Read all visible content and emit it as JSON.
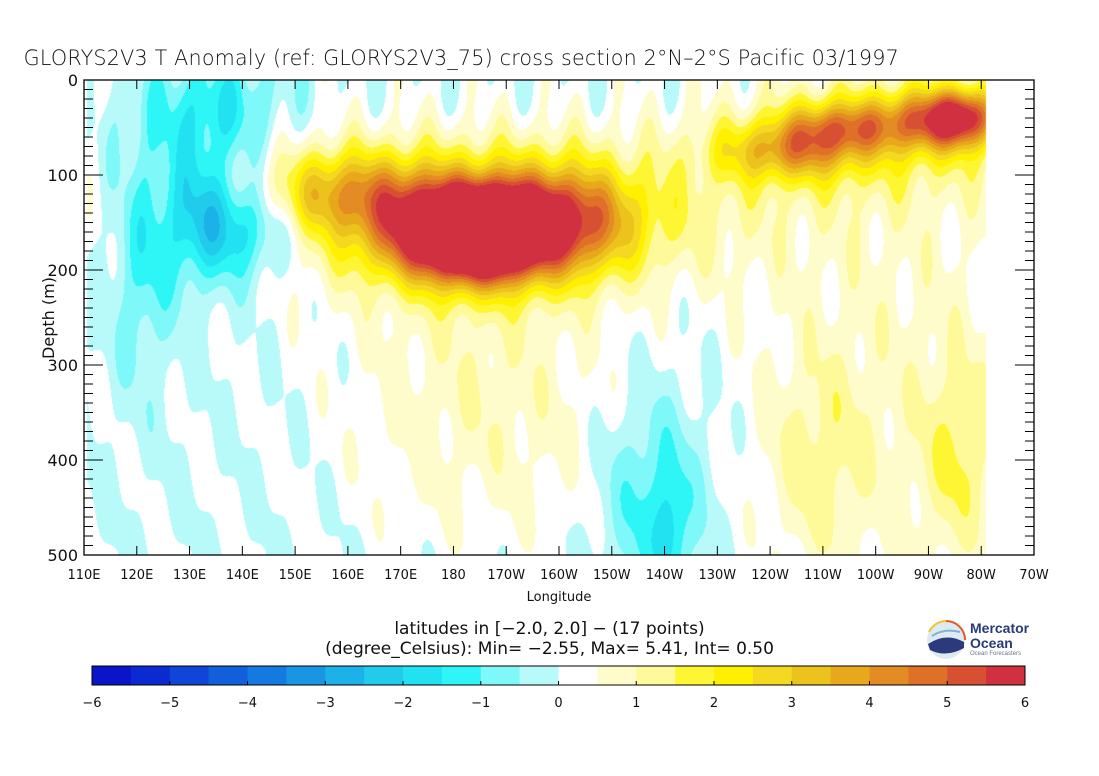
{
  "chart_data": {
    "type": "heatmap",
    "subtype": "filled-contour cross section",
    "title": "GLORYS2V3 T Anomaly (ref: GLORYS2V3_75) cross section 2°N–2°S Pacific 03/1997",
    "xlabel": "Longitude",
    "ylabel": "Depth (m)",
    "x_range_deg_east": [
      110,
      290
    ],
    "y_range_m": [
      0,
      500
    ],
    "y_inverted": true,
    "x_ticks": [
      {
        "value": 110,
        "label": "110E"
      },
      {
        "value": 120,
        "label": "120E"
      },
      {
        "value": 130,
        "label": "130E"
      },
      {
        "value": 140,
        "label": "140E"
      },
      {
        "value": 150,
        "label": "150E"
      },
      {
        "value": 160,
        "label": "160E"
      },
      {
        "value": 170,
        "label": "170E"
      },
      {
        "value": 180,
        "label": "180"
      },
      {
        "value": 190,
        "label": "170W"
      },
      {
        "value": 200,
        "label": "160W"
      },
      {
        "value": 210,
        "label": "150W"
      },
      {
        "value": 220,
        "label": "140W"
      },
      {
        "value": 230,
        "label": "130W"
      },
      {
        "value": 240,
        "label": "120W"
      },
      {
        "value": 250,
        "label": "110W"
      },
      {
        "value": 260,
        "label": "100W"
      },
      {
        "value": 270,
        "label": "90W"
      },
      {
        "value": 280,
        "label": "80W"
      },
      {
        "value": 290,
        "label": "70W"
      }
    ],
    "y_ticks": [
      {
        "value": 0,
        "label": "0"
      },
      {
        "value": 100,
        "label": "100"
      },
      {
        "value": 200,
        "label": "200"
      },
      {
        "value": 300,
        "label": "300"
      },
      {
        "value": 400,
        "label": "400"
      },
      {
        "value": 500,
        "label": "500"
      }
    ],
    "y_minor_tick_step": 10,
    "land_mask_east_of_deg": 281,
    "features": [
      {
        "name": "warm core west",
        "lon": 179,
        "depth": 162,
        "amp": 5.4,
        "slon": 9,
        "sdep": 34
      },
      {
        "name": "warm core central",
        "lon": 187,
        "depth": 162,
        "amp": 5.2,
        "slon": 7,
        "sdep": 32
      },
      {
        "name": "warm lobe",
        "lon": 200,
        "depth": 150,
        "amp": 4.0,
        "slon": 9,
        "sdep": 38
      },
      {
        "name": "thermocline ridge",
        "lon": 185,
        "depth": 140,
        "amp": 2.4,
        "slon": 32,
        "sdep": 55
      },
      {
        "name": "western warm",
        "lon": 160,
        "depth": 118,
        "amp": 2.4,
        "slon": 12,
        "sdep": 30
      },
      {
        "name": "east shallow 1",
        "lon": 243,
        "depth": 75,
        "amp": 2.6,
        "slon": 9,
        "sdep": 22
      },
      {
        "name": "east shallow 2",
        "lon": 253,
        "depth": 50,
        "amp": 2.8,
        "slon": 7,
        "sdep": 20
      },
      {
        "name": "east shallow 3",
        "lon": 271,
        "depth": 42,
        "amp": 3.7,
        "slon": 7,
        "sdep": 22
      },
      {
        "name": "east shallow 4",
        "lon": 277,
        "depth": 38,
        "amp": 3.0,
        "slon": 4,
        "sdep": 20
      },
      {
        "name": "east band",
        "lon": 262,
        "depth": 60,
        "amp": 1.4,
        "slon": 22,
        "sdep": 45
      },
      {
        "name": "cold tongue west",
        "lon": 141,
        "depth": 150,
        "amp": -2.5,
        "slon": 7,
        "sdep": 40
      },
      {
        "name": "cold west 2",
        "lon": 131,
        "depth": 140,
        "amp": -1.9,
        "slon": 5,
        "sdep": 55
      },
      {
        "name": "cold surface",
        "lon": 135,
        "depth": 30,
        "amp": -1.4,
        "slon": 9,
        "sdep": 40
      },
      {
        "name": "cold far west",
        "lon": 121,
        "depth": 180,
        "amp": -1.2,
        "slon": 4,
        "sdep": 90
      },
      {
        "name": "cold deep central",
        "lon": 218,
        "depth": 440,
        "amp": -1.3,
        "slon": 7,
        "sdep": 80
      },
      {
        "name": "cold deep sliver",
        "lon": 221,
        "depth": 480,
        "amp": -1.0,
        "slon": 2,
        "sdep": 40
      },
      {
        "name": "warm deep 1",
        "lon": 186,
        "depth": 330,
        "amp": 0.9,
        "slon": 18,
        "sdep": 110
      },
      {
        "name": "warm deep east",
        "lon": 276,
        "depth": 400,
        "amp": 1.1,
        "slon": 5,
        "sdep": 70
      },
      {
        "name": "warm deep mid-east",
        "lon": 249,
        "depth": 400,
        "amp": 0.9,
        "slon": 7,
        "sdep": 80
      },
      {
        "name": "warm far east column",
        "lon": 265,
        "depth": 300,
        "amp": 0.7,
        "slon": 20,
        "sdep": 200
      }
    ],
    "colorbar": {
      "levels": [
        -6,
        -5.5,
        -5,
        -4.5,
        -4,
        -3.5,
        -3,
        -2.5,
        -2,
        -1.5,
        -1,
        -0.5,
        0,
        0.5,
        1,
        1.5,
        2,
        2.5,
        3,
        3.5,
        4,
        4.5,
        5,
        5.5,
        6
      ],
      "colors": [
        "#0a14c8",
        "#0c2ad2",
        "#0f46d8",
        "#125fdc",
        "#1479e0",
        "#1896e4",
        "#1cb1e8",
        "#20cbec",
        "#22e2f2",
        "#2ef6f6",
        "#7ef8f8",
        "#b8fafa",
        "#ffffff",
        "#fffccc",
        "#fffa99",
        "#fff633",
        "#fff000",
        "#f5d820",
        "#ecc21c",
        "#e8a81c",
        "#e48c24",
        "#de7028",
        "#d85032",
        "#d03040"
      ],
      "tick_labels": [
        "-6",
        "-5",
        "-4",
        "-3",
        "-2",
        "-1",
        "0",
        "1",
        "2",
        "3",
        "4",
        "5",
        "6"
      ]
    }
  },
  "subtitle_line1": "latitudes in [−2.0, 2.0] − (17 points)",
  "subtitle_line2": "(degree_Celsius): Min= −2.55, Max= 5.41, Int= 0.50",
  "logo": {
    "line1": "Mercator",
    "line2": "Ocean",
    "tagline": "Ocean Forecasters"
  }
}
